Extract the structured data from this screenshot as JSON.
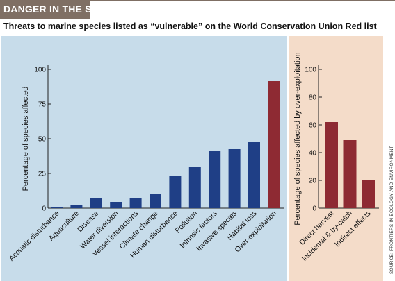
{
  "header": {
    "title": "DANGER IN THE SEA",
    "subtitle": "Threats to marine species listed as “vulnerable” on the World Conservation Union Red list"
  },
  "source": "SOURCE: FRONTIERS IN ECOLOGY AND ENVIRONMENT",
  "colors": {
    "header_band": "#7f6f64",
    "left_panel_bg": "#c7dcea",
    "right_panel_bg": "#f4dcc9",
    "bar_blue": "#1f3f86",
    "bar_red": "#8e2a33"
  },
  "chart_data": [
    {
      "type": "bar",
      "ylabel": "Percentage of species affected",
      "ylim": [
        0,
        100
      ],
      "yticks": [
        0,
        25,
        50,
        75,
        100
      ],
      "grid": false,
      "categories": [
        "Acoustic disturbance",
        "Aquaculture",
        "Disease",
        "Water diversion",
        "Vessel interactions",
        "Climate change",
        "Human disturbance",
        "Pollution",
        "Intrinsic factors",
        "Invasive species",
        "Habitat loss",
        "Over-exploitation"
      ],
      "values": [
        1,
        2,
        7,
        4.5,
        7,
        10.5,
        23.5,
        29.5,
        41.5,
        42.5,
        47.5,
        91.5
      ],
      "highlight": "Over-exploitation"
    },
    {
      "type": "bar",
      "ylabel": "Percentage of species affected by over-exploitation",
      "ylim": [
        0,
        100
      ],
      "yticks": [
        0,
        20,
        40,
        60,
        80,
        100
      ],
      "grid": false,
      "categories": [
        "Direct harvest",
        "Incidental & by-catch",
        "Indirect effects"
      ],
      "values": [
        62,
        49,
        20.5
      ]
    }
  ]
}
